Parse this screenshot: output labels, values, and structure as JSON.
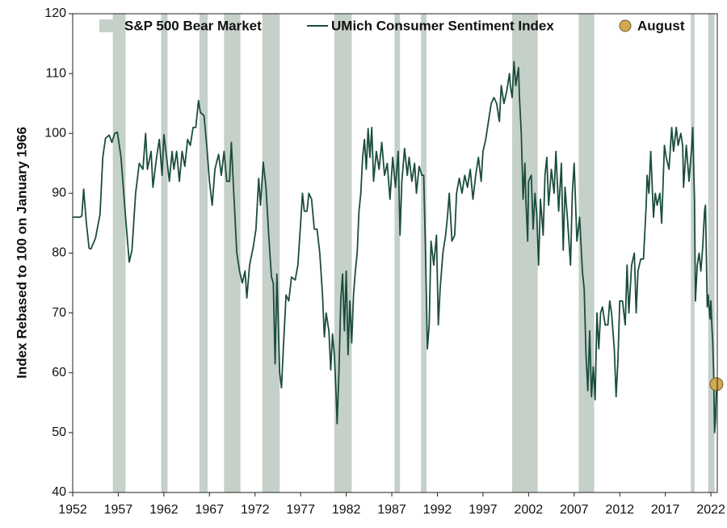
{
  "chart_data": {
    "type": "line",
    "ylabel": "Index Rebased to 100 on January 1966",
    "xlim": [
      1952,
      2022.7
    ],
    "ylim": [
      40,
      120
    ],
    "xticks": [
      1952,
      1957,
      1962,
      1967,
      1972,
      1977,
      1982,
      1987,
      1992,
      1997,
      2002,
      2007,
      2012,
      2017,
      2022
    ],
    "yticks": [
      40,
      50,
      60,
      70,
      80,
      90,
      100,
      110,
      120
    ],
    "shaded": {
      "name": "S&P 500 Bear Market",
      "color": "#c5d0c8",
      "ranges": [
        [
          1956.4,
          1957.8
        ],
        [
          1961.7,
          1962.4
        ],
        [
          1965.9,
          1966.8
        ],
        [
          1968.6,
          1970.4
        ],
        [
          1972.8,
          1974.7
        ],
        [
          1980.7,
          1982.6
        ],
        [
          1987.3,
          1987.9
        ],
        [
          1990.2,
          1990.8
        ],
        [
          2000.2,
          2003.0
        ],
        [
          2007.5,
          2009.2
        ],
        [
          2019.8,
          2020.2
        ],
        [
          2021.7,
          2022.4
        ]
      ]
    },
    "x": [
      1952.0,
      1952.8,
      1953.0,
      1953.2,
      1953.5,
      1953.8,
      1954.0,
      1954.5,
      1955.0,
      1955.3,
      1955.6,
      1956.0,
      1956.3,
      1956.6,
      1956.9,
      1957.3,
      1957.8,
      1958.2,
      1958.5,
      1958.9,
      1959.3,
      1959.7,
      1960.0,
      1960.2,
      1960.6,
      1960.8,
      1961.2,
      1961.5,
      1961.8,
      1962.0,
      1962.3,
      1962.6,
      1962.9,
      1963.1,
      1963.4,
      1963.7,
      1964.0,
      1964.3,
      1964.6,
      1964.9,
      1965.2,
      1965.5,
      1965.8,
      1966.0,
      1966.4,
      1966.7,
      1967.0,
      1967.3,
      1967.6,
      1968.0,
      1968.3,
      1968.6,
      1968.9,
      1969.2,
      1969.4,
      1969.7,
      1970.0,
      1970.3,
      1970.6,
      1970.9,
      1971.1,
      1971.4,
      1971.8,
      1972.1,
      1972.4,
      1972.6,
      1972.9,
      1973.2,
      1973.5,
      1973.8,
      1974.0,
      1974.2,
      1974.4,
      1974.7,
      1974.9,
      1975.1,
      1975.4,
      1975.7,
      1976.0,
      1976.4,
      1976.7,
      1977.0,
      1977.2,
      1977.4,
      1977.7,
      1977.9,
      1978.2,
      1978.5,
      1978.8,
      1979.1,
      1979.4,
      1979.6,
      1979.8,
      1980.1,
      1980.3,
      1980.5,
      1980.7,
      1980.9,
      1981.0,
      1981.2,
      1981.4,
      1981.6,
      1981.8,
      1982.0,
      1982.2,
      1982.4,
      1982.6,
      1982.8,
      1983.0,
      1983.2,
      1983.4,
      1983.6,
      1983.8,
      1984.0,
      1984.2,
      1984.4,
      1984.6,
      1984.8,
      1985.0,
      1985.3,
      1985.6,
      1985.9,
      1986.2,
      1986.5,
      1986.8,
      1987.1,
      1987.4,
      1987.7,
      1987.9,
      1988.1,
      1988.4,
      1988.7,
      1988.9,
      1989.2,
      1989.5,
      1989.7,
      1990.0,
      1990.3,
      1990.5,
      1990.7,
      1990.9,
      1991.1,
      1991.3,
      1991.6,
      1991.9,
      1992.1,
      1992.3,
      1992.6,
      1992.9,
      1993.1,
      1993.3,
      1993.6,
      1993.9,
      1994.1,
      1994.4,
      1994.7,
      1995.0,
      1995.3,
      1995.6,
      1995.9,
      1996.2,
      1996.5,
      1996.8,
      1997.0,
      1997.3,
      1997.6,
      1997.9,
      1998.2,
      1998.5,
      1998.8,
      1999.0,
      1999.3,
      1999.6,
      1999.9,
      2000.0,
      2000.2,
      2000.4,
      2000.6,
      2000.9,
      2001.0,
      2001.2,
      2001.4,
      2001.6,
      2001.7,
      2001.9,
      2002.0,
      2002.3,
      2002.5,
      2002.7,
      2002.9,
      2003.1,
      2003.3,
      2003.6,
      2003.8,
      2004.0,
      2004.2,
      2004.5,
      2004.8,
      2005.0,
      2005.3,
      2005.6,
      2005.8,
      2006.0,
      2006.3,
      2006.6,
      2006.8,
      2007.0,
      2007.3,
      2007.6,
      2007.9,
      2008.1,
      2008.3,
      2008.5,
      2008.7,
      2008.9,
      2009.1,
      2009.3,
      2009.5,
      2009.7,
      2009.9,
      2010.1,
      2010.4,
      2010.7,
      2010.9,
      2011.1,
      2011.4,
      2011.6,
      2011.8,
      2012.0,
      2012.3,
      2012.6,
      2012.8,
      2013.0,
      2013.3,
      2013.6,
      2013.8,
      2014.0,
      2014.3,
      2014.6,
      2014.9,
      2015.0,
      2015.2,
      2015.4,
      2015.7,
      2015.9,
      2016.1,
      2016.4,
      2016.6,
      2016.9,
      2017.1,
      2017.4,
      2017.7,
      2017.9,
      2018.2,
      2018.4,
      2018.7,
      2018.9,
      2019.0,
      2019.3,
      2019.6,
      2019.9,
      2020.0,
      2020.2,
      2020.3,
      2020.5,
      2020.7,
      2020.9,
      2021.1,
      2021.3,
      2021.4,
      2021.6,
      2021.7,
      2021.9,
      2022.0,
      2022.1,
      2022.2,
      2022.3,
      2022.4,
      2022.5,
      2022.6
    ],
    "series": [
      {
        "name": "UMich Consumer Sentiment Index",
        "color": "#1b4d3e",
        "values": [
          86,
          86,
          86.2,
          90.7,
          85,
          80.8,
          80.7,
          82.5,
          86.5,
          96,
          99.2,
          99.7,
          98.5,
          100,
          100.2,
          96,
          86,
          78.5,
          80.5,
          90,
          95,
          94,
          100,
          94,
          97,
          91,
          96,
          99,
          93,
          99.8,
          96,
          92,
          97,
          94,
          97,
          92,
          97,
          94.5,
          99,
          98,
          101,
          101,
          105.5,
          103.5,
          103,
          98,
          92,
          88,
          94,
          96.5,
          93,
          97,
          92,
          92,
          98.5,
          89,
          80,
          77,
          75,
          77,
          72.5,
          78,
          81,
          84,
          92.5,
          88,
          95.2,
          91,
          83,
          76,
          75,
          61.5,
          76.5,
          60,
          57.5,
          64,
          73,
          72,
          76,
          75.5,
          78,
          85,
          90,
          87,
          87,
          90,
          89,
          84,
          84,
          80,
          73,
          66,
          70,
          67,
          60.5,
          66.5,
          63,
          56,
          51.5,
          60,
          72,
          76.5,
          67,
          77,
          63,
          72,
          65,
          73,
          77,
          80,
          87,
          90,
          96,
          99,
          94,
          100.8,
          96,
          101,
          92,
          97,
          94,
          98.5,
          93,
          95,
          89,
          96,
          91,
          97,
          83,
          92,
          97.5,
          93,
          96,
          92,
          95,
          90,
          94.5,
          93,
          93,
          80,
          64,
          68,
          82,
          78,
          83,
          68,
          74,
          80,
          83,
          86,
          90,
          82,
          83,
          90,
          92.5,
          90,
          93,
          91,
          94,
          89,
          93,
          96,
          92,
          97,
          99,
          102,
          105,
          106,
          105,
          102,
          108,
          105,
          107,
          110,
          108,
          106,
          112,
          108,
          111,
          106,
          100,
          89,
          95,
          89,
          82,
          92,
          93,
          84,
          90,
          86.5,
          78,
          89,
          83,
          93,
          96,
          88,
          94,
          90,
          97,
          87,
          95,
          80.5,
          91,
          85,
          78,
          90,
          95,
          82,
          86,
          77,
          74,
          63,
          57,
          67,
          56,
          61,
          55.5,
          70,
          64,
          70,
          71,
          68,
          68,
          72,
          70,
          64,
          56,
          62,
          72,
          72,
          68,
          78,
          70,
          78,
          80,
          70,
          77,
          79,
          79,
          88,
          93,
          90,
          97,
          86,
          90,
          88,
          90,
          85,
          98,
          96,
          94,
          101,
          97,
          101,
          98,
          100,
          98,
          91,
          98,
          92,
          98,
          101,
          89,
          72,
          78,
          80,
          77,
          81,
          87,
          88,
          71,
          73,
          69,
          72,
          68,
          65,
          60,
          50,
          52,
          58
        ]
      }
    ],
    "highlight": {
      "name": "August",
      "x": 2022.6,
      "value": 58.1,
      "color": "#d4a84f"
    }
  }
}
